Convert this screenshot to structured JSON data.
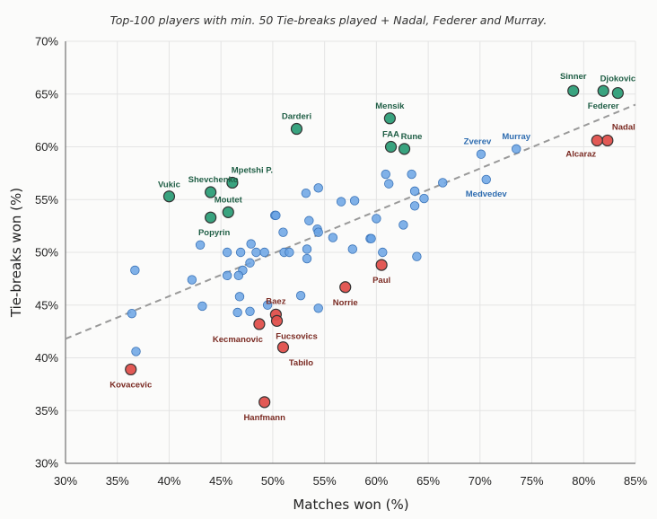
{
  "chart_data": {
    "type": "scatter",
    "title": "",
    "subtitle": "Top-100 players with min. 50 Tie-breaks played + Nadal, Federer and Murray.",
    "xlabel": "Matches won (%)",
    "ylabel": "Tie-breaks won (%)",
    "xlim": [
      30,
      85
    ],
    "ylim": [
      30,
      70
    ],
    "x_ticks": [
      "30%",
      "35%",
      "40%",
      "45%",
      "50%",
      "55%",
      "60%",
      "65%",
      "70%",
      "75%",
      "80%",
      "85%"
    ],
    "y_ticks": [
      "30%",
      "35%",
      "40%",
      "45%",
      "50%",
      "55%",
      "60%",
      "65%",
      "70%"
    ],
    "grid": true,
    "trendline": {
      "from": [
        30,
        41.8
      ],
      "to": [
        85,
        64.0
      ],
      "style": "dashed"
    },
    "colors": {
      "green": "#2e9e78",
      "red": "#e0504c",
      "blue": "#6aa3e4",
      "green_text": "#1f5e45",
      "red_text": "#7a2a22",
      "blue_text": "#2e6cb0"
    },
    "series": [
      {
        "group": "green",
        "points": [
          {
            "x": 79.0,
            "y": 65.3,
            "label": "Sinner"
          },
          {
            "x": 81.9,
            "y": 65.3,
            "label": ""
          },
          {
            "x": 83.3,
            "y": 65.1,
            "label": "Djokovic"
          },
          {
            "x": 61.3,
            "y": 62.7,
            "label": "Mensik"
          },
          {
            "x": 52.3,
            "y": 61.7,
            "label": "Darderi"
          },
          {
            "x": 61.4,
            "y": 60.0,
            "label": "FAA"
          },
          {
            "x": 62.7,
            "y": 59.8,
            "label": "Rune"
          },
          {
            "x": 40.0,
            "y": 55.3,
            "label": "Vukic"
          },
          {
            "x": 46.1,
            "y": 56.6,
            "label": "Mpetshi P."
          },
          {
            "x": 44.0,
            "y": 55.7,
            "label": "Shevchenko"
          },
          {
            "x": 45.7,
            "y": 53.8,
            "label": "Moutet"
          },
          {
            "x": 44.0,
            "y": 53.3,
            "label": "Popyrin"
          }
        ]
      },
      {
        "group": "red",
        "points": [
          {
            "x": 82.3,
            "y": 60.6,
            "label": "Nadal"
          },
          {
            "x": 81.3,
            "y": 60.6,
            "label": "Alcaraz"
          },
          {
            "x": 60.5,
            "y": 48.8,
            "label": "Paul"
          },
          {
            "x": 57.0,
            "y": 46.7,
            "label": "Norrie"
          },
          {
            "x": 50.3,
            "y": 44.1,
            "label": "Baez"
          },
          {
            "x": 50.4,
            "y": 43.5,
            "label": "Fucsovics"
          },
          {
            "x": 48.7,
            "y": 43.2,
            "label": "Kecmanovic"
          },
          {
            "x": 51.0,
            "y": 41.0,
            "label": "Tabilo"
          },
          {
            "x": 36.3,
            "y": 38.9,
            "label": "Kovacevic"
          },
          {
            "x": 49.2,
            "y": 35.8,
            "label": "Hanfmann"
          }
        ]
      },
      {
        "group": "blue",
        "points": [
          {
            "x": 73.5,
            "y": 59.8,
            "label": "Murray"
          },
          {
            "x": 70.1,
            "y": 59.3,
            "label": "Zverev"
          },
          {
            "x": 70.6,
            "y": 56.9,
            "label": "Medvedev"
          },
          {
            "x": 66.4,
            "y": 56.6,
            "label": ""
          },
          {
            "x": 60.9,
            "y": 57.4,
            "label": ""
          },
          {
            "x": 61.2,
            "y": 56.5,
            "label": ""
          },
          {
            "x": 63.4,
            "y": 57.4,
            "label": ""
          },
          {
            "x": 63.7,
            "y": 55.8,
            "label": ""
          },
          {
            "x": 64.6,
            "y": 55.1,
            "label": ""
          },
          {
            "x": 63.7,
            "y": 54.4,
            "label": ""
          },
          {
            "x": 54.4,
            "y": 56.1,
            "label": ""
          },
          {
            "x": 53.2,
            "y": 55.6,
            "label": ""
          },
          {
            "x": 56.6,
            "y": 54.8,
            "label": ""
          },
          {
            "x": 57.9,
            "y": 54.9,
            "label": ""
          },
          {
            "x": 60.0,
            "y": 53.2,
            "label": ""
          },
          {
            "x": 50.2,
            "y": 53.5,
            "label": ""
          },
          {
            "x": 50.3,
            "y": 53.5,
            "label": ""
          },
          {
            "x": 53.5,
            "y": 53.0,
            "label": ""
          },
          {
            "x": 54.3,
            "y": 52.2,
            "label": ""
          },
          {
            "x": 54.4,
            "y": 51.9,
            "label": ""
          },
          {
            "x": 51.0,
            "y": 51.9,
            "label": ""
          },
          {
            "x": 55.8,
            "y": 51.4,
            "label": ""
          },
          {
            "x": 59.4,
            "y": 51.3,
            "label": ""
          },
          {
            "x": 59.5,
            "y": 51.3,
            "label": ""
          },
          {
            "x": 62.6,
            "y": 52.6,
            "label": ""
          },
          {
            "x": 47.9,
            "y": 50.8,
            "label": ""
          },
          {
            "x": 43.0,
            "y": 50.7,
            "label": ""
          },
          {
            "x": 45.6,
            "y": 50.0,
            "label": ""
          },
          {
            "x": 46.9,
            "y": 50.0,
            "label": ""
          },
          {
            "x": 48.4,
            "y": 50.0,
            "label": ""
          },
          {
            "x": 49.2,
            "y": 50.0,
            "label": ""
          },
          {
            "x": 51.1,
            "y": 50.0,
            "label": ""
          },
          {
            "x": 51.6,
            "y": 50.0,
            "label": ""
          },
          {
            "x": 53.3,
            "y": 50.3,
            "label": ""
          },
          {
            "x": 57.7,
            "y": 50.3,
            "label": ""
          },
          {
            "x": 60.6,
            "y": 50.0,
            "label": ""
          },
          {
            "x": 53.3,
            "y": 49.4,
            "label": ""
          },
          {
            "x": 63.9,
            "y": 49.6,
            "label": ""
          },
          {
            "x": 47.8,
            "y": 49.0,
            "label": ""
          },
          {
            "x": 47.1,
            "y": 48.3,
            "label": ""
          },
          {
            "x": 36.7,
            "y": 48.3,
            "label": ""
          },
          {
            "x": 45.6,
            "y": 47.8,
            "label": ""
          },
          {
            "x": 46.7,
            "y": 47.8,
            "label": ""
          },
          {
            "x": 42.2,
            "y": 47.4,
            "label": ""
          },
          {
            "x": 46.8,
            "y": 45.8,
            "label": ""
          },
          {
            "x": 52.7,
            "y": 45.9,
            "label": ""
          },
          {
            "x": 43.2,
            "y": 44.9,
            "label": ""
          },
          {
            "x": 49.5,
            "y": 45.0,
            "label": ""
          },
          {
            "x": 54.4,
            "y": 44.7,
            "label": ""
          },
          {
            "x": 46.6,
            "y": 44.3,
            "label": ""
          },
          {
            "x": 47.8,
            "y": 44.4,
            "label": ""
          },
          {
            "x": 36.4,
            "y": 44.2,
            "label": ""
          },
          {
            "x": 36.8,
            "y": 40.6,
            "label": ""
          }
        ]
      }
    ]
  }
}
